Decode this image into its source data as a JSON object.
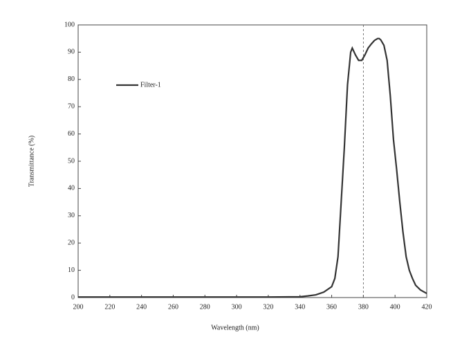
{
  "chart_data": {
    "type": "line",
    "xlabel": "Wavelength (nm)",
    "ylabel": "Transmittance (%)",
    "x": [
      200,
      220,
      240,
      260,
      280,
      300,
      320,
      340,
      345,
      350,
      355,
      360,
      362,
      364,
      366,
      368,
      370,
      372,
      373,
      375,
      377,
      379,
      381,
      383,
      385,
      387,
      389,
      390,
      391,
      393,
      395,
      397,
      399,
      401,
      403,
      405,
      407,
      409,
      411,
      413,
      416,
      420
    ],
    "series": [
      {
        "name": "Filter-1",
        "color": "#333333",
        "values": [
          0.2,
          0.2,
          0.2,
          0.2,
          0.2,
          0.2,
          0.2,
          0.3,
          0.6,
          1,
          2,
          4,
          7,
          15,
          35,
          55,
          78,
          90,
          91.5,
          89,
          87,
          87,
          89,
          91.5,
          93,
          94.3,
          95,
          95,
          94.5,
          92.5,
          87,
          74,
          58,
          47,
          35,
          24,
          15,
          10,
          7,
          4.5,
          2.8,
          1.5
        ]
      }
    ],
    "xlim": [
      200,
      420
    ],
    "xticks": [
      200,
      220,
      240,
      260,
      280,
      300,
      320,
      340,
      360,
      380,
      400,
      420
    ],
    "ylim": [
      0,
      100
    ],
    "yticks": [
      0,
      10,
      20,
      30,
      40,
      50,
      60,
      70,
      80,
      90,
      100
    ],
    "vlines": [
      380
    ],
    "legend": "upper left"
  }
}
